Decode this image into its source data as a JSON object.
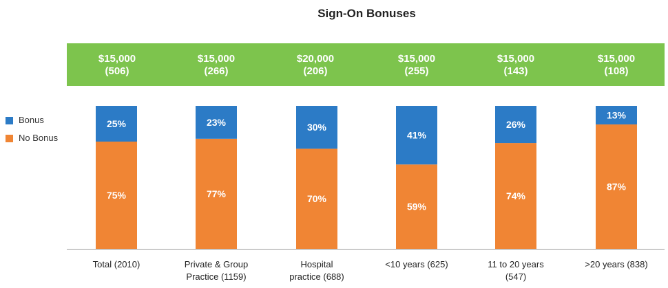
{
  "chart_data": {
    "type": "bar",
    "stacked": true,
    "percent": true,
    "title": "Sign-On Bonuses",
    "categories": [
      "Total (2010)",
      "Private & Group Practice (1159)",
      "Hospital practice (688)",
      "<10 years (625)",
      "11 to 20 years (547)",
      ">20 years (838)"
    ],
    "category_lines": [
      [
        "Total (2010)"
      ],
      [
        "Private & Group",
        "Practice (1159)"
      ],
      [
        "Hospital",
        "practice (688)"
      ],
      [
        "<10 years (625)"
      ],
      [
        "11 to 20 years",
        "(547)"
      ],
      [
        ">20 years (838)"
      ]
    ],
    "series": [
      {
        "name": "No Bonus",
        "color": "#f08534",
        "values": [
          75,
          77,
          70,
          59,
          74,
          87
        ],
        "labels": [
          "75%",
          "77%",
          "70%",
          "59%",
          "74%",
          "87%"
        ]
      },
      {
        "name": "Bonus",
        "color": "#2c7bc6",
        "values": [
          25,
          23,
          30,
          41,
          26,
          13
        ],
        "labels": [
          "25%",
          "23%",
          "30%",
          "41%",
          "26%",
          "13%"
        ]
      }
    ],
    "bonus_amounts": [
      {
        "amount": "$15,000",
        "count": "(506)"
      },
      {
        "amount": "$15,000",
        "count": "(266)"
      },
      {
        "amount": "$20,000",
        "count": "(206)"
      },
      {
        "amount": "$15,000",
        "count": "(255)"
      },
      {
        "amount": "$15,000",
        "count": "(143)"
      },
      {
        "amount": "$15,000",
        "count": "(108)"
      }
    ],
    "legend": {
      "position": "left",
      "entries": [
        "Bonus",
        "No Bonus"
      ]
    },
    "xlabel": "",
    "ylabel": "",
    "ylim": [
      0,
      100
    ],
    "banner_color": "#7dc44d"
  }
}
